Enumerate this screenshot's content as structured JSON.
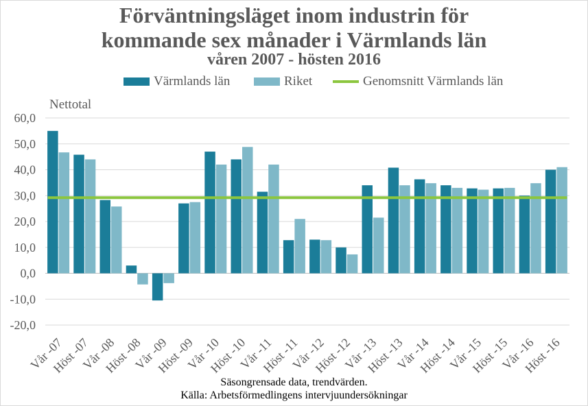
{
  "chart_data": {
    "type": "bar",
    "title_line1": "Förväntningsläget inom industrin för",
    "title_line2": "kommande sex månader i Värmlands län",
    "subtitle": "våren 2007 - hösten 2016",
    "ylabel": "Nettotal",
    "ylim": [
      -20,
      60
    ],
    "yticks": [
      "60,0",
      "50,0",
      "40,0",
      "30,0",
      "20,0",
      "10,0",
      "0,0",
      "-10,0",
      "-20,0"
    ],
    "ytick_values": [
      60,
      50,
      40,
      30,
      20,
      10,
      0,
      -10,
      -20
    ],
    "categories": [
      "Vår -07",
      "Höst -07",
      "Vår -08",
      "Höst -08",
      "Vår -09",
      "Höst -09",
      "Vår -10",
      "Höst -10",
      "Vår -11",
      "Höst -11",
      "Vår -12",
      "Höst -12",
      "Vår -13",
      "Höst -13",
      "Vår -14",
      "Höst -14",
      "Vår -15",
      "Höst -15",
      "Vår -16",
      "Höst -16"
    ],
    "series": [
      {
        "name": "Värmlands län",
        "color": "#1b7d99",
        "values": [
          55.0,
          45.8,
          28.3,
          3.0,
          -10.5,
          27.0,
          47.0,
          44.0,
          31.5,
          12.8,
          13.0,
          10.0,
          34.0,
          40.8,
          36.3,
          34.0,
          32.8,
          32.8,
          30.0,
          40.0
        ]
      },
      {
        "name": "Riket",
        "color": "#7fb8c8",
        "values": [
          46.7,
          44.0,
          25.8,
          -4.3,
          -3.8,
          27.5,
          42.0,
          48.8,
          42.0,
          21.0,
          12.8,
          7.3,
          21.5,
          34.0,
          34.8,
          33.0,
          32.3,
          33.0,
          34.8,
          41.0
        ]
      }
    ],
    "average": {
      "name": "Genomsnitt Värmlands län",
      "value": 29.2,
      "color": "#8cc63f"
    },
    "legend": [
      "Värmlands län",
      "Riket",
      "Genomsnitt Värmlands län"
    ],
    "grid": true
  },
  "footer": {
    "line1": "Säsongrensade data, trendvärden.",
    "line2": "Källa: Arbetsförmedlingens intervjuundersökningar"
  }
}
